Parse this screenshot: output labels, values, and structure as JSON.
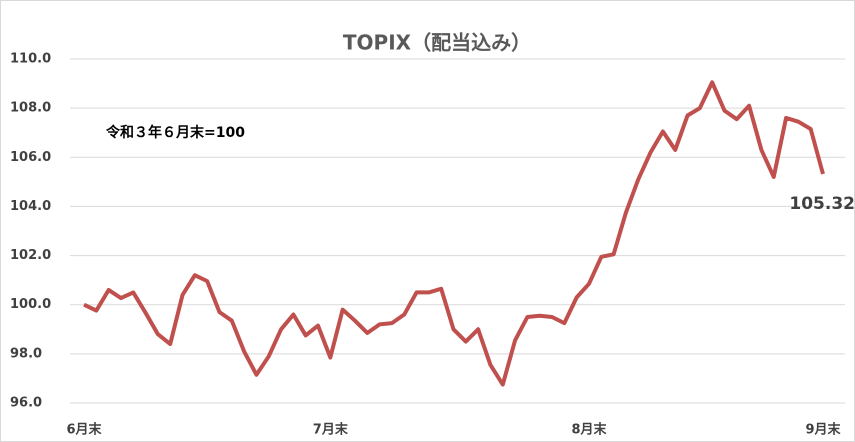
{
  "chart_data": {
    "type": "line",
    "title": "TOPIX（配当込み）",
    "annotation": "令和３年６月末=100",
    "categories": [
      "6月末",
      null,
      null,
      null,
      null,
      null,
      null,
      null,
      null,
      null,
      null,
      null,
      null,
      null,
      null,
      null,
      null,
      null,
      null,
      null,
      "7月末",
      null,
      null,
      null,
      null,
      null,
      null,
      null,
      null,
      null,
      null,
      null,
      null,
      null,
      null,
      null,
      null,
      null,
      null,
      null,
      null,
      "8月末",
      null,
      null,
      null,
      null,
      null,
      null,
      null,
      null,
      null,
      null,
      null,
      null,
      null,
      null,
      null,
      null,
      null,
      null,
      "9月末"
    ],
    "series": [
      {
        "name": "TOPIX（配当込み）",
        "color": "#c0504d",
        "values": [
          100.0,
          99.76,
          100.6,
          100.27,
          100.5,
          99.67,
          98.8,
          98.4,
          100.4,
          101.2,
          100.96,
          99.7,
          99.35,
          98.1,
          97.15,
          97.9,
          99.0,
          99.6,
          98.75,
          99.15,
          97.85,
          99.8,
          99.35,
          98.85,
          99.2,
          99.25,
          99.6,
          100.5,
          100.5,
          100.65,
          99.0,
          98.5,
          99.0,
          97.55,
          96.75,
          98.55,
          99.5,
          99.55,
          99.5,
          99.25,
          100.3,
          100.85,
          101.95,
          102.05,
          103.75,
          105.1,
          106.2,
          107.05,
          106.3,
          107.7,
          108.0,
          109.05,
          107.9,
          107.55,
          108.1,
          106.3,
          105.2,
          107.6,
          107.45,
          107.15,
          105.32
        ],
        "value_labels": [
          null,
          null,
          null,
          null,
          null,
          null,
          null,
          null,
          null,
          null,
          null,
          null,
          null,
          null,
          null,
          null,
          null,
          null,
          null,
          null,
          null,
          null,
          null,
          null,
          null,
          null,
          null,
          null,
          null,
          null,
          null,
          null,
          null,
          null,
          null,
          null,
          null,
          null,
          null,
          null,
          null,
          null,
          null,
          null,
          null,
          null,
          null,
          null,
          null,
          null,
          null,
          null,
          null,
          null,
          null,
          null,
          null,
          null,
          null,
          null,
          "105.32"
        ]
      }
    ],
    "ylim": [
      96,
      110
    ],
    "yticks": [
      {
        "value": 96,
        "label": "96.0"
      },
      {
        "value": 98,
        "label": "98.0"
      },
      {
        "value": 100,
        "label": "100.0"
      },
      {
        "value": 102,
        "label": "102.0"
      },
      {
        "value": 104,
        "label": "104.0"
      },
      {
        "value": 106,
        "label": "106.0"
      },
      {
        "value": 108,
        "label": "108.0"
      },
      {
        "value": 110,
        "label": "110.0"
      }
    ],
    "grid": true
  }
}
